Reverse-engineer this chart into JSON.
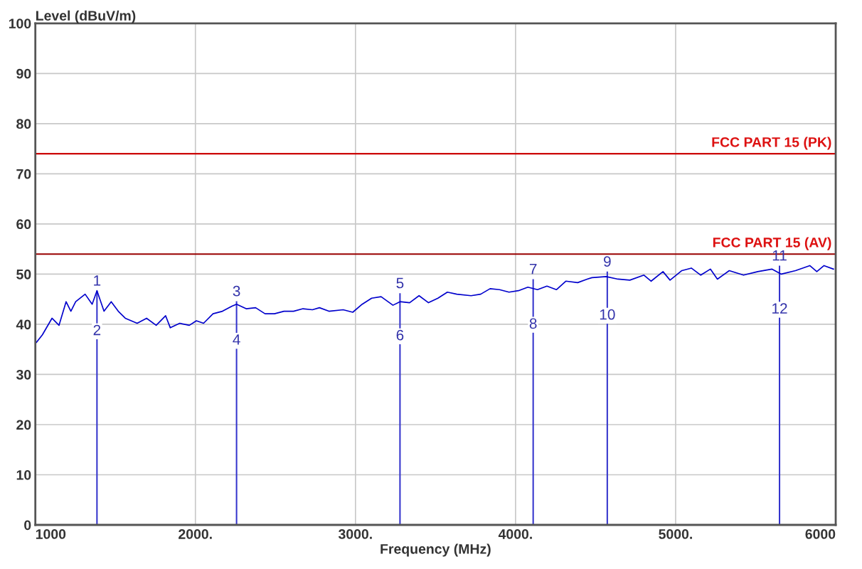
{
  "chart_data": {
    "type": "line",
    "xlabel": "Frequency (MHz)",
    "ylabel": "Level (dBuV/m)",
    "xlim": [
      1000,
      6000
    ],
    "ylim": [
      0,
      100
    ],
    "xticks": [
      1000,
      {
        "value": 2000,
        "label": "2000."
      },
      {
        "value": 3000,
        "label": "3000."
      },
      {
        "value": 4000,
        "label": "4000."
      },
      {
        "value": 5000,
        "label": "5000."
      },
      6000
    ],
    "yticks": [
      0,
      10,
      20,
      30,
      40,
      50,
      60,
      70,
      80,
      90,
      100
    ],
    "grid": true,
    "marker": "none",
    "line_style": "solid",
    "series": [
      {
        "color": "#0000cc",
        "x": [
          1007,
          1044,
          1104,
          1148,
          1192,
          1222,
          1252,
          1311,
          1355,
          1385,
          1429,
          1474,
          1518,
          1562,
          1636,
          1695,
          1755,
          1814,
          1843,
          1902,
          1962,
          2006,
          2051,
          2110,
          2169,
          2228,
          2257,
          2317,
          2376,
          2435,
          2494,
          2553,
          2613,
          2672,
          2731,
          2775,
          2834,
          2923,
          2983,
          3042,
          3101,
          3160,
          3234,
          3278,
          3338,
          3397,
          3456,
          3515,
          3574,
          3633,
          3722,
          3782,
          3841,
          3900,
          3959,
          4018,
          4077,
          4137,
          4196,
          4255,
          4314,
          4388,
          4447,
          4477,
          4566,
          4640,
          4714,
          4802,
          4847,
          4921,
          4965,
          5039,
          5098,
          5157,
          5217,
          5261,
          5335,
          5424,
          5513,
          5601,
          5660,
          5749,
          5838,
          5882,
          5927,
          5986
        ],
        "values": [
          36.4,
          37.9,
          41.2,
          39.8,
          44.5,
          42.6,
          44.5,
          46.0,
          44.0,
          46.7,
          42.6,
          44.5,
          42.6,
          41.2,
          40.2,
          41.2,
          39.8,
          41.7,
          39.3,
          40.2,
          39.8,
          40.7,
          40.2,
          42.1,
          42.6,
          43.6,
          44.0,
          43.1,
          43.3,
          42.1,
          42.1,
          42.6,
          42.6,
          43.1,
          42.9,
          43.3,
          42.6,
          42.9,
          42.4,
          44.0,
          45.2,
          45.5,
          43.8,
          44.5,
          44.3,
          45.7,
          44.3,
          45.2,
          46.4,
          46.0,
          45.7,
          46.0,
          47.1,
          46.9,
          46.4,
          46.7,
          47.4,
          46.9,
          47.6,
          46.9,
          48.6,
          48.3,
          49.0,
          49.3,
          49.5,
          49.0,
          48.8,
          49.8,
          48.6,
          50.5,
          48.8,
          50.7,
          51.2,
          49.8,
          51.0,
          49.0,
          50.7,
          49.8,
          50.5,
          51.0,
          50.0,
          50.7,
          51.7,
          50.5,
          51.7,
          51.0
        ]
      },
      {
        "type": "bar",
        "color": "#3333cc",
        "x": [
          1385,
          2257,
          3278,
          4110,
          4573,
          5649
        ],
        "values": [
          46.7,
          44.6,
          46.2,
          49.0,
          50.5,
          51.7
        ]
      }
    ],
    "ref_lines": [
      {
        "axis": "y",
        "value": 74,
        "label": "FCC PART 15 (PK)",
        "color": "#cc0000"
      },
      {
        "axis": "y",
        "value": 54,
        "label": "FCC PART 15 (AV)",
        "color": "#990000"
      }
    ],
    "annotations": [
      {
        "text": "1",
        "x": 1385,
        "y": 46.7
      },
      {
        "text": "2",
        "x": 1385,
        "y": 38.6
      },
      {
        "text": "3",
        "x": 2257,
        "y": 44.6
      },
      {
        "text": "4",
        "x": 2257,
        "y": 36.7
      },
      {
        "text": "5",
        "x": 3278,
        "y": 46.2
      },
      {
        "text": "6",
        "x": 3278,
        "y": 37.6
      },
      {
        "text": "7",
        "x": 4110,
        "y": 49.0
      },
      {
        "text": "8",
        "x": 4110,
        "y": 39.9
      },
      {
        "text": "9",
        "x": 4573,
        "y": 50.5
      },
      {
        "text": "10",
        "x": 4573,
        "y": 41.7
      },
      {
        "text": "11",
        "x": 5649,
        "y": 51.7
      },
      {
        "text": "12",
        "x": 5649,
        "y": 42.9
      }
    ]
  }
}
